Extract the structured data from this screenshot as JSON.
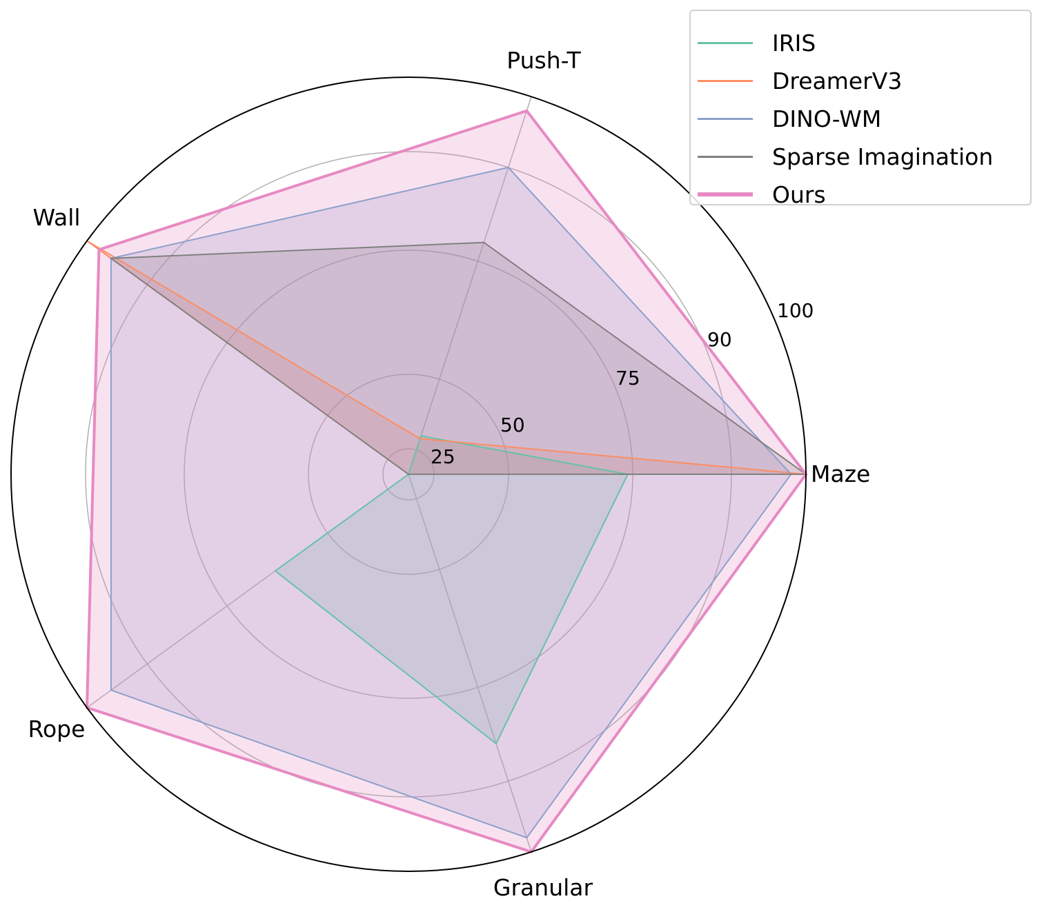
{
  "chart_data": {
    "type": "radar",
    "title": "",
    "categories": [
      "Maze",
      "Push-T",
      "Wall",
      "Rope",
      "Granular"
    ],
    "radial_ticks": [
      25,
      50,
      75,
      90,
      100
    ],
    "radial_tick_labels": [
      "25",
      "50",
      "75",
      "90",
      "100"
    ],
    "rlim": [
      20,
      100
    ],
    "radial_scale": "non-linear (compressed near center)",
    "grid": true,
    "legend_position": "upper right",
    "series": [
      {
        "name": "IRIS",
        "color": "#66c2a5",
        "values": [
          74,
          30,
          20,
          63,
          84
        ],
        "linewidth": 2
      },
      {
        "name": "DreamerV3",
        "color": "#fc8d62",
        "values": [
          100,
          29,
          100,
          20,
          20
        ],
        "linewidth": 2
      },
      {
        "name": "DINO-WM",
        "color": "#8da0cb",
        "values": [
          98,
          90,
          96,
          96,
          98
        ],
        "linewidth": 2
      },
      {
        "name": "Sparse Imagination",
        "color": "#808080",
        "values": [
          100,
          78,
          96,
          20,
          20
        ],
        "linewidth": 2
      },
      {
        "name": "Ours",
        "color": "#e78ac3",
        "values": [
          100,
          98,
          98,
          100,
          100
        ],
        "linewidth": 4
      }
    ]
  },
  "legend": {
    "items": [
      {
        "label": "IRIS",
        "color": "#66c2a5"
      },
      {
        "label": "DreamerV3",
        "color": "#fc8d62"
      },
      {
        "label": "DINO-WM",
        "color": "#8da0cb"
      },
      {
        "label": "Sparse Imagination",
        "color": "#808080"
      },
      {
        "label": "Ours",
        "color": "#e78ac3"
      }
    ]
  }
}
